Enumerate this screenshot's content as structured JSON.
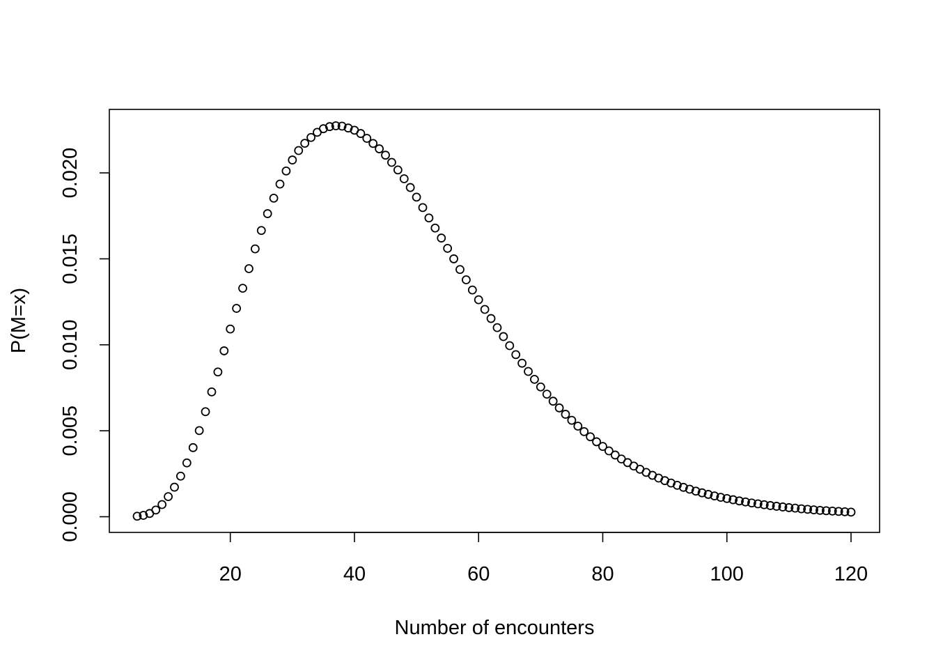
{
  "chart_data": {
    "type": "scatter",
    "title": "",
    "xlabel": "Number of encounters",
    "ylabel": "P(M=x)",
    "xlim": [
      5,
      120
    ],
    "ylim": [
      0,
      0.0228
    ],
    "x_ticks": [
      20,
      40,
      60,
      80,
      100,
      120
    ],
    "x_tick_labels": [
      "20",
      "40",
      "60",
      "80",
      "100",
      "120"
    ],
    "y_ticks": [
      0.0,
      0.005,
      0.01,
      0.015,
      0.02
    ],
    "y_tick_labels": [
      "0.000",
      "0.005",
      "0.010",
      "0.015",
      "0.020"
    ],
    "grid": false,
    "legend": "none",
    "marker": "open-circle",
    "color": "#000000",
    "series": [
      {
        "x": [
          5,
          6,
          7,
          8,
          9,
          10,
          11,
          12,
          13,
          14,
          15,
          16,
          17,
          18,
          19,
          20,
          21,
          22,
          23,
          24,
          25,
          26,
          27,
          28,
          29,
          30,
          31,
          32,
          33,
          34,
          35,
          36,
          37,
          38,
          39,
          40,
          41,
          42,
          43,
          44,
          45,
          46,
          47,
          48,
          49,
          50,
          51,
          52,
          53,
          54,
          55,
          56,
          57,
          58,
          59,
          60,
          61,
          62,
          63,
          64,
          65,
          66,
          67,
          68,
          69,
          70,
          71,
          72,
          73,
          74,
          75,
          76,
          77,
          78,
          79,
          80,
          81,
          82,
          83,
          84,
          85,
          86,
          87,
          88,
          89,
          90,
          91,
          92,
          93,
          94,
          95,
          96,
          97,
          98,
          99,
          100,
          101,
          102,
          103,
          104,
          105,
          106,
          107,
          108,
          109,
          110,
          111,
          112,
          113,
          114,
          115,
          116,
          117,
          118,
          119,
          120
        ],
        "values": [
          3e-05,
          8e-05,
          0.00019,
          0.00039,
          0.00071,
          0.00117,
          0.00172,
          0.00236,
          0.00313,
          0.00402,
          0.00501,
          0.00611,
          0.00726,
          0.00842,
          0.00965,
          0.01092,
          0.01212,
          0.01329,
          0.01443,
          0.01558,
          0.01665,
          0.01763,
          0.01853,
          0.01935,
          0.02011,
          0.02075,
          0.0213,
          0.02172,
          0.02206,
          0.02236,
          0.02257,
          0.02269,
          0.02274,
          0.02272,
          0.02261,
          0.02248,
          0.02229,
          0.02201,
          0.02171,
          0.0214,
          0.02103,
          0.02061,
          0.02017,
          0.01966,
          0.01915,
          0.01859,
          0.01798,
          0.01738,
          0.01679,
          0.01621,
          0.01561,
          0.015,
          0.01438,
          0.01378,
          0.01319,
          0.01262,
          0.01206,
          0.01153,
          0.011,
          0.01048,
          0.00995,
          0.00943,
          0.00893,
          0.00845,
          0.00799,
          0.00755,
          0.00713,
          0.00672,
          0.00633,
          0.00596,
          0.00561,
          0.00527,
          0.00495,
          0.00465,
          0.00436,
          0.00409,
          0.00383,
          0.00359,
          0.00336,
          0.00315,
          0.00295,
          0.00276,
          0.00258,
          0.00241,
          0.00225,
          0.0021,
          0.00196,
          0.00183,
          0.00171,
          0.0016,
          0.00149,
          0.00139,
          0.0013,
          0.00121,
          0.00113,
          0.00106,
          0.00099,
          0.00092,
          0.00086,
          0.0008,
          0.00075,
          0.0007,
          0.00065,
          0.00061,
          0.00057,
          0.00053,
          0.0005,
          0.00046,
          0.00043,
          0.0004,
          0.00037,
          0.00035,
          0.00033,
          0.00031,
          0.00029,
          0.00027
        ]
      }
    ]
  }
}
